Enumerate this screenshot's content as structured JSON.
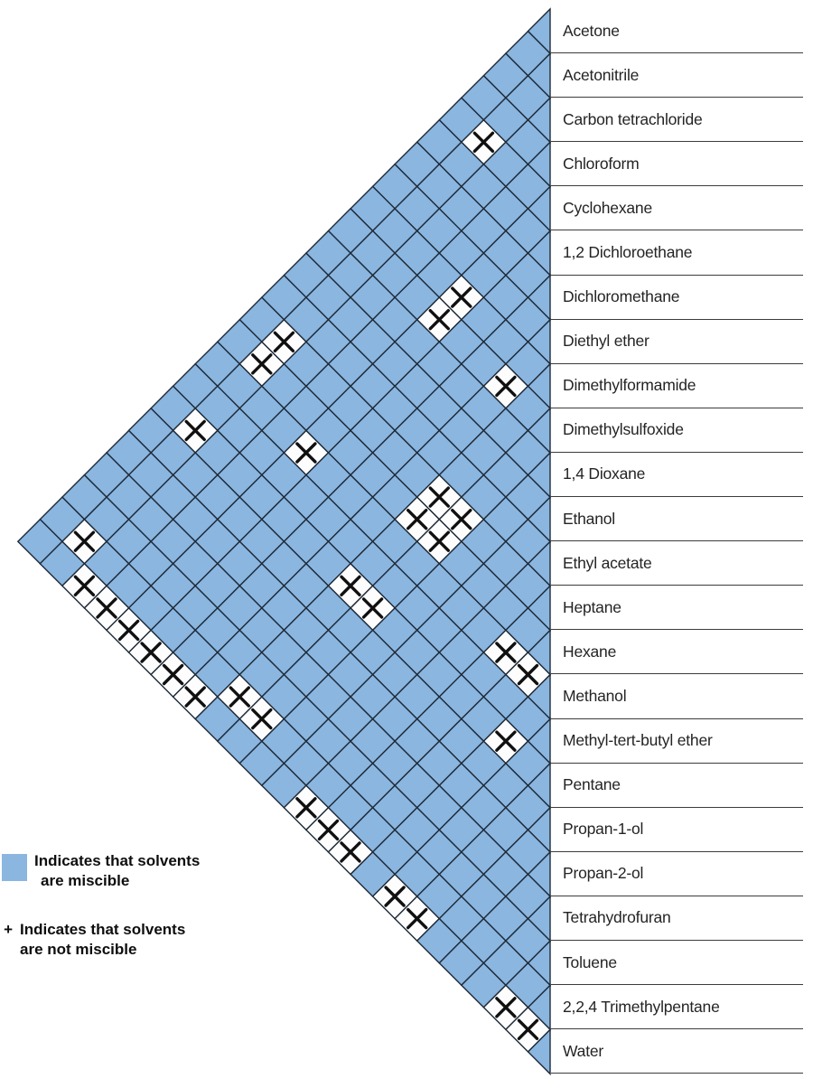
{
  "legend": {
    "miscible": {
      "swatch_color": "#8AB6E0",
      "line1": "Indicates that solvents",
      "line2": "are miscible"
    },
    "immiscible": {
      "symbol": "+",
      "line1": "Indicates that solvents",
      "line2": "are not miscible"
    }
  },
  "chart_data": {
    "type": "heatmap",
    "subtype": "triangular-miscibility-matrix",
    "legend_position": "bottom-left",
    "miscible_color": "#8AB6E0",
    "grid_line_color": "#1e2a38",
    "immiscible_symbol": "+",
    "solvents": [
      "Acetone",
      "Acetonitrile",
      "Carbon tetrachloride",
      "Chloroform",
      "Cyclohexane",
      "1,2 Dichloroethane",
      "Dichloromethane",
      "Diethyl ether",
      "Dimethylformamide",
      "Dimethylsulfoxide",
      "1,4 Dioxane",
      "Ethanol",
      "Ethyl acetate",
      "Heptane",
      "Hexane",
      "Methanol",
      "Methyl-tert-butyl ether",
      "Pentane",
      "Propan-1-ol",
      "Propan-2-ol",
      "Tetrahydrofuran",
      "Toluene",
      "2,2,4 Trimethylpentane",
      "Water"
    ],
    "immiscible_pairs": [
      [
        "Acetonitrile",
        "Cyclohexane"
      ],
      [
        "Acetonitrile",
        "Heptane"
      ],
      [
        "Acetonitrile",
        "Hexane"
      ],
      [
        "Acetonitrile",
        "Pentane"
      ],
      [
        "Acetonitrile",
        "2,2,4 Trimethylpentane"
      ],
      [
        "Carbon tetrachloride",
        "Water"
      ],
      [
        "Chloroform",
        "Water"
      ],
      [
        "Cyclohexane",
        "Dimethylformamide"
      ],
      [
        "Cyclohexane",
        "Dimethylsulfoxide"
      ],
      [
        "Cyclohexane",
        "Methanol"
      ],
      [
        "Cyclohexane",
        "Water"
      ],
      [
        "1,2 Dichloroethane",
        "Water"
      ],
      [
        "Dichloromethane",
        "Water"
      ],
      [
        "Diethyl ether",
        "Dimethylsulfoxide"
      ],
      [
        "Diethyl ether",
        "Water"
      ],
      [
        "Dimethylformamide",
        "Heptane"
      ],
      [
        "Dimethylformamide",
        "Hexane"
      ],
      [
        "Dimethylformamide",
        "Pentane"
      ],
      [
        "Dimethylformamide",
        "2,2,4 Trimethylpentane"
      ],
      [
        "Dimethylsulfoxide",
        "Heptane"
      ],
      [
        "Dimethylsulfoxide",
        "Hexane"
      ],
      [
        "Dimethylsulfoxide",
        "Pentane"
      ],
      [
        "Dimethylsulfoxide",
        "2,2,4 Trimethylpentane"
      ],
      [
        "Ethyl acetate",
        "Water"
      ],
      [
        "Heptane",
        "Methanol"
      ],
      [
        "Heptane",
        "Water"
      ],
      [
        "Hexane",
        "Methanol"
      ],
      [
        "Hexane",
        "Water"
      ],
      [
        "Methanol",
        "Pentane"
      ],
      [
        "Methyl-tert-butyl ether",
        "Water"
      ],
      [
        "Pentane",
        "Water"
      ],
      [
        "Toluene",
        "Water"
      ],
      [
        "2,2,4 Trimethylpentane",
        "Water"
      ]
    ]
  }
}
